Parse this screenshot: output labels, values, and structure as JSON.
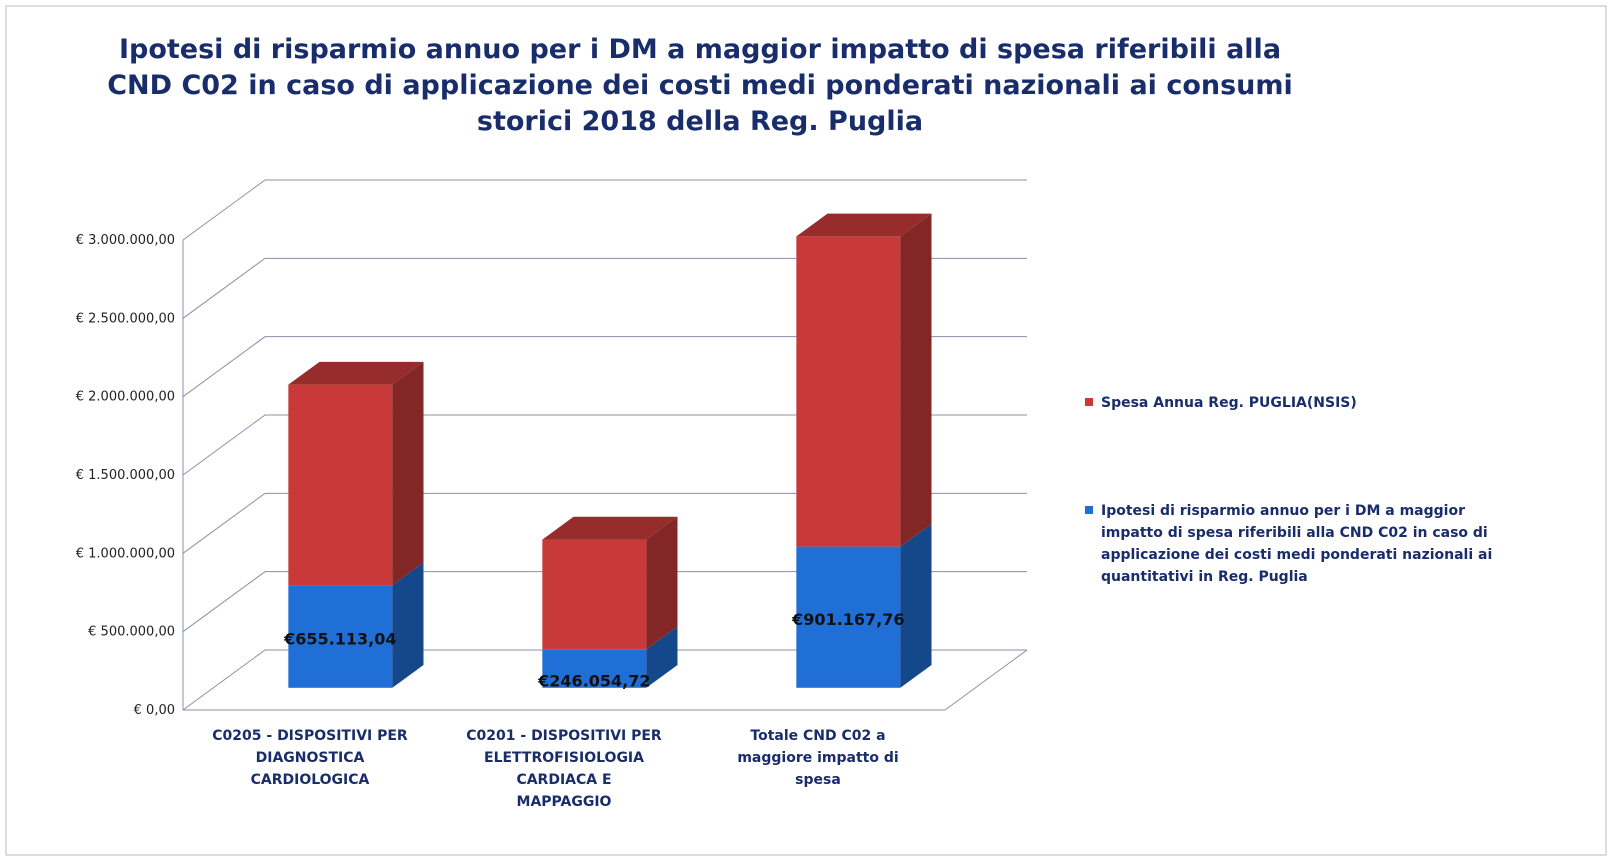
{
  "chart_data": {
    "type": "bar3d-stacked",
    "title": "Ipotesi di risparmio annuo per i DM a maggior impatto di spesa riferibili alla\nCND C02 in caso di applicazione dei costi medi ponderati nazionali ai consumi\nstorici 2018 della Reg. Puglia",
    "categories": [
      "C0205 - DISPOSITIVI PER\nDIAGNOSTICA\nCARDIOLOGICA",
      "C0201 - DISPOSITIVI PER\nELETTROFISIOLOGIA\nCARDIACA E\nMAPPAGGIO",
      "Totale CND C02 a\nmaggiore impatto di\nspesa"
    ],
    "series": [
      {
        "name": "Ipotesi di risparmio annuo per i DM a maggior\nimpatto di spesa riferibili alla CND C02 in caso di\napplicazione dei costi medi ponderati nazionali ai\nquantitativi in Reg. Puglia",
        "color": "#1f6fd6",
        "values": [
          655113.04,
          246054.72,
          901167.76
        ],
        "value_labels": [
          "€655.113,04",
          "€246.054,72",
          "€901.167,76"
        ]
      },
      {
        "name": "Spesa Annua Reg. PUGLIA(NSIS)",
        "color": "#c83a3a",
        "values": [
          1280000,
          700000,
          1980000
        ]
      }
    ],
    "ylim": [
      0,
      3000000
    ],
    "yticks": [
      {
        "value": 0,
        "label": "€ 0,00"
      },
      {
        "value": 500000,
        "label": "€ 500.000,00"
      },
      {
        "value": 1000000,
        "label": "€ 1.000.000,00"
      },
      {
        "value": 1500000,
        "label": "€ 1.500.000,00"
      },
      {
        "value": 2000000,
        "label": "€ 2.000.000,00"
      },
      {
        "value": 2500000,
        "label": "€ 2.500.000,00"
      },
      {
        "value": 3000000,
        "label": "€ 3.000.000,00"
      }
    ],
    "grid": true,
    "legend": "right"
  }
}
